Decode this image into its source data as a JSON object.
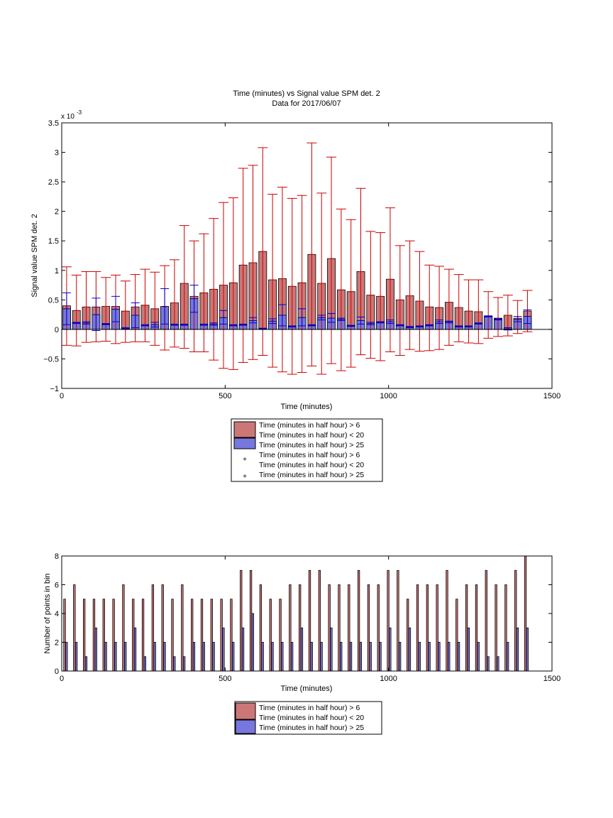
{
  "chart_data": [
    {
      "type": "bar",
      "title": "Time (minutes) vs Signal value SPM det. 2",
      "subtitle": "Data for 2017/06/07",
      "xlabel": "Time (minutes)",
      "ylabel": "Signal value SPM det. 2",
      "y_exponent_label": "x 10",
      "y_exponent_power": "-3",
      "xlim": [
        0,
        1500
      ],
      "ylim": [
        -1,
        3.5
      ],
      "y_units": "x 10^-3",
      "grid": false,
      "legend_position": "below",
      "xticks": [
        0,
        500,
        1000,
        1500
      ],
      "yticks": [
        -1,
        -0.5,
        0,
        0.5,
        1,
        1.5,
        2,
        2.5,
        3,
        3.5
      ],
      "ytick_labels": [
        "−1",
        "−0.5",
        "0",
        "0.5",
        "1",
        "1.5",
        "2",
        "2.5",
        "3",
        "3.5"
      ],
      "x": [
        15,
        45,
        75,
        105,
        135,
        165,
        195,
        225,
        255,
        285,
        315,
        345,
        375,
        405,
        435,
        465,
        495,
        525,
        555,
        585,
        615,
        645,
        675,
        705,
        735,
        765,
        795,
        825,
        855,
        885,
        915,
        945,
        975,
        1005,
        1035,
        1065,
        1095,
        1125,
        1155,
        1185,
        1215,
        1245,
        1275,
        1305,
        1335,
        1365,
        1395,
        1425
      ],
      "series": [
        {
          "name": "Time (minutes in half hour) > 6",
          "name2": "Time (minutes in half hour) < 20",
          "color": "#cc7777",
          "error_color": "#cc0000",
          "values": [
            0.4,
            0.32,
            0.38,
            0.38,
            0.39,
            0.39,
            0.31,
            0.38,
            0.41,
            0.35,
            0.38,
            0.45,
            0.78,
            0.56,
            0.62,
            0.68,
            0.75,
            0.79,
            1.09,
            1.13,
            1.32,
            0.84,
            0.86,
            0.73,
            0.79,
            1.27,
            0.78,
            1.2,
            0.67,
            0.64,
            0.98,
            0.58,
            0.56,
            0.85,
            0.5,
            0.57,
            0.48,
            0.38,
            0.37,
            0.46,
            0.37,
            0.31,
            0.3,
            0.22,
            0.19,
            0.24,
            0.19,
            0.31
          ],
          "err_low": [
            -0.27,
            -0.28,
            -0.22,
            -0.21,
            -0.2,
            -0.24,
            -0.22,
            -0.21,
            -0.21,
            -0.27,
            -0.35,
            -0.3,
            -0.32,
            -0.38,
            -0.38,
            -0.52,
            -0.66,
            -0.68,
            -0.56,
            -0.51,
            -0.44,
            -0.64,
            -0.72,
            -0.76,
            -0.73,
            -0.62,
            -0.76,
            -0.58,
            -0.7,
            -0.64,
            -0.43,
            -0.49,
            -0.53,
            -0.38,
            -0.44,
            -0.34,
            -0.37,
            -0.36,
            -0.34,
            -0.27,
            -0.21,
            -0.23,
            -0.24,
            -0.15,
            -0.12,
            -0.11,
            -0.07,
            -0.04
          ],
          "err_high": [
            1.06,
            0.92,
            0.98,
            0.98,
            0.88,
            0.92,
            0.82,
            0.93,
            1.02,
            0.97,
            1.08,
            1.18,
            1.76,
            1.5,
            1.62,
            1.88,
            2.15,
            2.23,
            2.73,
            2.78,
            3.08,
            2.29,
            2.41,
            2.22,
            2.27,
            3.16,
            2.31,
            2.92,
            2.04,
            1.86,
            2.39,
            1.66,
            1.64,
            2.06,
            1.42,
            1.5,
            1.32,
            1.09,
            1.07,
            1.02,
            0.93,
            0.84,
            0.84,
            0.64,
            0.54,
            0.58,
            0.49,
            0.66
          ]
        },
        {
          "name": "Time (minutes in half hour) > 25",
          "color": "#7777dd",
          "error_color": "#0000cc",
          "values": [
            0.35,
            0.11,
            0.11,
            0.25,
            0.09,
            0.34,
            0.02,
            0.24,
            0.07,
            0.08,
            0.39,
            0.08,
            0.08,
            0.52,
            0.08,
            0.09,
            0.2,
            0.07,
            0.08,
            0.15,
            0.01,
            0.14,
            0.24,
            0.05,
            0.2,
            0.07,
            0.2,
            0.19,
            0.17,
            0.06,
            0.15,
            0.1,
            0.12,
            0.13,
            0.07,
            0.04,
            0.05,
            0.07,
            0.13,
            0.13,
            0.05,
            0.05,
            0.1,
            0.22,
            0.17,
            0.01,
            0.17,
            0.22
          ],
          "err_low": [
            0.08,
            0.1,
            0.09,
            -0.02,
            0.08,
            0.13,
            0.01,
            0.03,
            0.06,
            0.04,
            0.09,
            0.07,
            0.07,
            0.29,
            0.07,
            0.07,
            0.09,
            0.06,
            0.07,
            0.11,
            0.0,
            0.1,
            0.06,
            0.04,
            0.06,
            0.06,
            0.16,
            0.12,
            0.15,
            0.05,
            0.09,
            0.08,
            0.11,
            0.1,
            0.06,
            0.03,
            0.04,
            0.06,
            0.1,
            0.11,
            0.04,
            0.04,
            0.09,
            0.21,
            0.16,
            -0.01,
            0.13,
            0.1
          ],
          "err_high": [
            0.62,
            0.12,
            0.13,
            0.53,
            0.1,
            0.56,
            0.03,
            0.45,
            0.08,
            0.12,
            0.69,
            0.09,
            0.09,
            0.75,
            0.09,
            0.11,
            0.32,
            0.08,
            0.09,
            0.2,
            0.02,
            0.18,
            0.42,
            0.06,
            0.35,
            0.08,
            0.24,
            0.27,
            0.19,
            0.07,
            0.21,
            0.12,
            0.13,
            0.16,
            0.08,
            0.05,
            0.06,
            0.08,
            0.16,
            0.14,
            0.06,
            0.06,
            0.11,
            0.23,
            0.18,
            0.03,
            0.22,
            0.33
          ]
        }
      ],
      "legend": [
        {
          "label": "Time (minutes in half hour) > 6",
          "label2": "Time (minutes in half hour) < 20",
          "kind": "patch",
          "color": "#cc7777"
        },
        {
          "label": "Time (minutes in half hour) > 25",
          "kind": "patch",
          "color": "#7777dd"
        },
        {
          "label": "Time (minutes in half hour) > 6",
          "label2": "Time (minutes in half hour) < 20",
          "kind": "plus",
          "color": "#cc0000"
        },
        {
          "label": "Time (minutes in half hour) > 25",
          "kind": "plus",
          "color": "#0000cc"
        }
      ]
    },
    {
      "type": "bar",
      "xlabel": "Time (minutes)",
      "ylabel": "Number of points in bin",
      "xlim": [
        0,
        1500
      ],
      "ylim": [
        0,
        8
      ],
      "grid": false,
      "legend_position": "below",
      "xticks": [
        0,
        500,
        1000,
        1500
      ],
      "yticks": [
        0,
        2,
        4,
        6,
        8
      ],
      "x": [
        15,
        45,
        75,
        105,
        135,
        165,
        195,
        225,
        255,
        285,
        315,
        345,
        375,
        405,
        435,
        465,
        495,
        525,
        555,
        585,
        615,
        645,
        675,
        705,
        735,
        765,
        795,
        825,
        855,
        885,
        915,
        945,
        975,
        1005,
        1035,
        1065,
        1095,
        1125,
        1155,
        1185,
        1215,
        1245,
        1275,
        1305,
        1335,
        1365,
        1395,
        1425
      ],
      "series": [
        {
          "name": "Time (minutes in half hour) > 6",
          "name2": "Time (minutes in half hour) < 20",
          "color": "#cc7777",
          "values": [
            5,
            6,
            5,
            5,
            5,
            5,
            6,
            5,
            5,
            6,
            6,
            5,
            6,
            5,
            5,
            5,
            5,
            5,
            7,
            7,
            6,
            5,
            5,
            6,
            6,
            7,
            7,
            6,
            6,
            6,
            7,
            6,
            6,
            7,
            7,
            5,
            6,
            6,
            6,
            7,
            5,
            6,
            6,
            7,
            6,
            6,
            7,
            8
          ]
        },
        {
          "name": "Time (minutes in half hour) > 25",
          "color": "#7777dd",
          "values": [
            2,
            2,
            1,
            3,
            2,
            2,
            2,
            3,
            1,
            2,
            2,
            1,
            1,
            2,
            2,
            2,
            3,
            2,
            3,
            4,
            2,
            2,
            2,
            2,
            3,
            2,
            2,
            3,
            2,
            2,
            2,
            2,
            2,
            3,
            2,
            3,
            2,
            2,
            2,
            2,
            2,
            3,
            2,
            1,
            1,
            2,
            3,
            3
          ]
        }
      ],
      "legend": [
        {
          "label": "Time (minutes in half hour) > 6",
          "label2": "Time (minutes in half hour) < 20",
          "kind": "patch",
          "color": "#cc7777"
        },
        {
          "label": "Time (minutes in half hour) > 25",
          "kind": "patch",
          "color": "#7777dd"
        }
      ]
    }
  ]
}
